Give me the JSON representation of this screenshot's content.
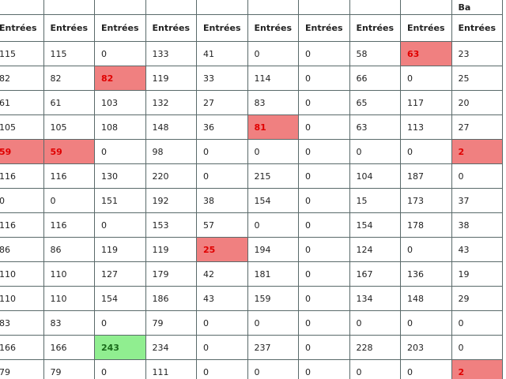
{
  "table": {
    "group_label": "Ba",
    "columns": [
      "Entrées",
      "Entrées",
      "Entrées",
      "Entrées",
      "Entrées",
      "Entrées",
      "Entrées",
      "Entrées",
      "Entrées",
      "Entrées"
    ],
    "rows": [
      [
        115,
        115,
        0,
        133,
        41,
        0,
        0,
        58,
        {
          "value": 63,
          "color": "#f08080"
        },
        23
      ],
      [
        82,
        82,
        {
          "value": 82,
          "color": "#f08080"
        },
        119,
        33,
        114,
        0,
        66,
        0,
        25
      ],
      [
        61,
        61,
        103,
        132,
        27,
        83,
        0,
        65,
        117,
        20
      ],
      [
        105,
        105,
        108,
        148,
        36,
        {
          "value": 81,
          "color": "#f08080"
        },
        0,
        63,
        113,
        27
      ],
      [
        {
          "value": 59,
          "color": "#f08080"
        },
        {
          "value": 59,
          "color": "#f08080"
        },
        0,
        98,
        0,
        0,
        0,
        0,
        0,
        {
          "value": 2,
          "color": "#f08080"
        }
      ],
      [
        116,
        116,
        130,
        220,
        0,
        215,
        0,
        104,
        187,
        0
      ],
      [
        0,
        0,
        151,
        192,
        38,
        154,
        0,
        15,
        173,
        37
      ],
      [
        116,
        116,
        0,
        153,
        57,
        0,
        0,
        154,
        178,
        38
      ],
      [
        86,
        86,
        119,
        119,
        {
          "value": 25,
          "color": "#f08080"
        },
        194,
        0,
        124,
        0,
        43
      ],
      [
        110,
        110,
        127,
        179,
        42,
        181,
        0,
        167,
        136,
        19
      ],
      [
        110,
        110,
        154,
        186,
        43,
        159,
        0,
        134,
        148,
        29
      ],
      [
        83,
        83,
        0,
        79,
        0,
        0,
        0,
        0,
        0,
        0
      ],
      [
        166,
        166,
        {
          "value": 243,
          "color": "#90ee90"
        },
        234,
        0,
        237,
        0,
        228,
        203,
        0
      ],
      [
        79,
        79,
        0,
        111,
        0,
        0,
        0,
        0,
        0,
        {
          "value": 2,
          "color": "#f08080"
        }
      ]
    ]
  }
}
